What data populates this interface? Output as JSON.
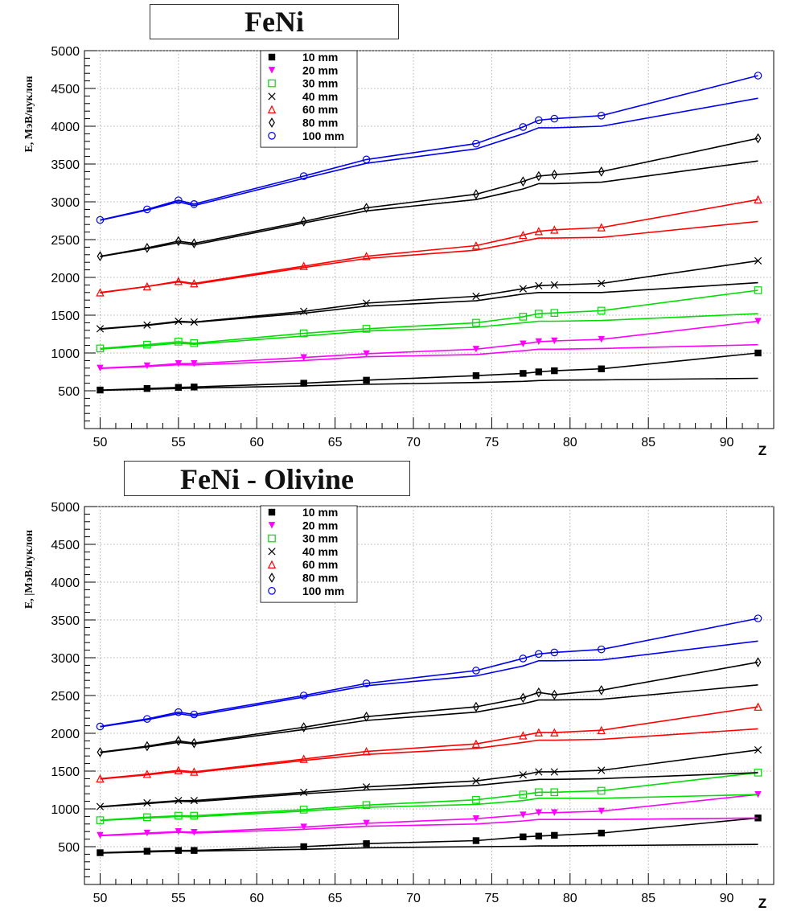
{
  "chart_data": [
    {
      "type": "line",
      "title": "FeNi",
      "ylabel": "E,  МэВ/нуклон",
      "xlabel": "Z",
      "xlim": [
        49,
        93
      ],
      "ylim": [
        0,
        5000
      ],
      "xticks": [
        50,
        55,
        60,
        65,
        70,
        75,
        80,
        85,
        90
      ],
      "yticks": [
        500,
        1000,
        1500,
        2000,
        2500,
        3000,
        3500,
        4000,
        4500,
        5000
      ],
      "grid": true,
      "legend_position": "top-center",
      "x": [
        50,
        53,
        55,
        56,
        63,
        67,
        74,
        77,
        78,
        79,
        82,
        92
      ],
      "series": [
        {
          "name": "10 mm",
          "marker": "filled-square",
          "color": "#000000",
          "values": [
            510,
            530,
            545,
            550,
            600,
            640,
            700,
            730,
            750,
            765,
            790,
            1000
          ],
          "fit": [
            505,
            520,
            530,
            535,
            565,
            585,
            610,
            625,
            635,
            640,
            645,
            665
          ]
        },
        {
          "name": "20 mm",
          "marker": "filled-triangle-down",
          "color": "#ff00ff",
          "values": [
            800,
            830,
            860,
            860,
            940,
            990,
            1050,
            1120,
            1150,
            1160,
            1180,
            1420
          ],
          "fit": [
            795,
            820,
            845,
            840,
            900,
            950,
            980,
            1030,
            1050,
            1050,
            1060,
            1110
          ]
        },
        {
          "name": "30 mm",
          "marker": "open-square",
          "color": "#00dd00",
          "values": [
            1060,
            1110,
            1150,
            1130,
            1260,
            1320,
            1400,
            1480,
            1520,
            1530,
            1560,
            1830
          ],
          "fit": [
            1050,
            1095,
            1130,
            1115,
            1225,
            1290,
            1340,
            1400,
            1420,
            1420,
            1430,
            1520
          ]
        },
        {
          "name": "40 mm",
          "marker": "cross",
          "color": "#000000",
          "values": [
            1320,
            1370,
            1420,
            1410,
            1550,
            1660,
            1750,
            1850,
            1890,
            1900,
            1920,
            2220
          ],
          "fit": [
            1315,
            1365,
            1410,
            1405,
            1525,
            1620,
            1690,
            1780,
            1800,
            1800,
            1800,
            1930
          ]
        },
        {
          "name": "60 mm",
          "marker": "open-triangle-up",
          "color": "#ff0000",
          "values": [
            1800,
            1880,
            1950,
            1920,
            2150,
            2280,
            2420,
            2560,
            2610,
            2630,
            2660,
            3030
          ],
          "fit": [
            1795,
            1880,
            1940,
            1910,
            2130,
            2250,
            2360,
            2480,
            2520,
            2520,
            2530,
            2740
          ]
        },
        {
          "name": "80 mm",
          "marker": "open-diamond",
          "color": "#000000",
          "values": [
            2280,
            2390,
            2480,
            2450,
            2740,
            2920,
            3100,
            3270,
            3340,
            3360,
            3400,
            3840
          ],
          "fit": [
            2275,
            2380,
            2460,
            2430,
            2720,
            2880,
            3030,
            3170,
            3240,
            3240,
            3260,
            3540
          ]
        },
        {
          "name": "100 mm",
          "marker": "open-circle",
          "color": "#0000ee",
          "values": [
            2760,
            2900,
            3020,
            2970,
            3340,
            3560,
            3770,
            3990,
            4080,
            4100,
            4140,
            4670
          ],
          "fit": [
            2755,
            2890,
            3000,
            2950,
            3310,
            3510,
            3700,
            3900,
            3980,
            3980,
            4000,
            4370
          ]
        }
      ]
    },
    {
      "type": "line",
      "title": "FeNi - Olivine",
      "ylabel": "E, |МэВ/нуклон",
      "xlabel": "Z",
      "xlim": [
        49,
        93
      ],
      "ylim": [
        0,
        5000
      ],
      "xticks": [
        50,
        55,
        60,
        65,
        70,
        75,
        80,
        85,
        90
      ],
      "yticks": [
        500,
        1000,
        1500,
        2000,
        2500,
        3000,
        3500,
        4000,
        4500,
        5000
      ],
      "grid": true,
      "legend_position": "top-center",
      "x": [
        50,
        53,
        55,
        56,
        63,
        67,
        74,
        77,
        78,
        79,
        82,
        92
      ],
      "series": [
        {
          "name": "10 mm",
          "marker": "filled-square",
          "color": "#000000",
          "values": [
            420,
            440,
            450,
            450,
            500,
            540,
            580,
            630,
            640,
            650,
            680,
            880
          ],
          "fit": [
            415,
            430,
            440,
            440,
            465,
            485,
            500,
            505,
            510,
            510,
            515,
            530
          ]
        },
        {
          "name": "20 mm",
          "marker": "filled-triangle-down",
          "color": "#ff00ff",
          "values": [
            650,
            680,
            700,
            690,
            760,
            810,
            870,
            920,
            950,
            950,
            970,
            1190
          ],
          "fit": [
            645,
            670,
            690,
            680,
            730,
            770,
            800,
            840,
            860,
            860,
            860,
            880
          ]
        },
        {
          "name": "30 mm",
          "marker": "open-square",
          "color": "#00dd00",
          "values": [
            850,
            890,
            910,
            910,
            990,
            1050,
            1120,
            1190,
            1220,
            1220,
            1240,
            1480
          ],
          "fit": [
            845,
            880,
            900,
            895,
            970,
            1020,
            1060,
            1110,
            1140,
            1140,
            1140,
            1190
          ]
        },
        {
          "name": "40 mm",
          "marker": "cross",
          "color": "#000000",
          "values": [
            1030,
            1080,
            1110,
            1110,
            1220,
            1290,
            1370,
            1450,
            1490,
            1490,
            1510,
            1780
          ],
          "fit": [
            1025,
            1070,
            1100,
            1095,
            1200,
            1250,
            1310,
            1370,
            1390,
            1390,
            1400,
            1480
          ]
        },
        {
          "name": "60 mm",
          "marker": "open-triangle-up",
          "color": "#ff0000",
          "values": [
            1400,
            1460,
            1510,
            1490,
            1660,
            1760,
            1860,
            1970,
            2010,
            2010,
            2040,
            2350
          ],
          "fit": [
            1395,
            1450,
            1495,
            1480,
            1640,
            1720,
            1800,
            1880,
            1910,
            1910,
            1920,
            2060
          ]
        },
        {
          "name": "80 mm",
          "marker": "open-diamond",
          "color": "#000000",
          "values": [
            1750,
            1830,
            1900,
            1870,
            2080,
            2220,
            2350,
            2470,
            2540,
            2510,
            2570,
            2940
          ],
          "fit": [
            1745,
            1820,
            1880,
            1860,
            2050,
            2170,
            2280,
            2390,
            2440,
            2440,
            2450,
            2640
          ]
        },
        {
          "name": "100 mm",
          "marker": "open-circle",
          "color": "#0000ee",
          "values": [
            2090,
            2190,
            2280,
            2250,
            2500,
            2660,
            2830,
            2990,
            3050,
            3070,
            3110,
            3520
          ],
          "fit": [
            2085,
            2180,
            2260,
            2230,
            2480,
            2630,
            2760,
            2890,
            2960,
            2960,
            2970,
            3220
          ]
        }
      ]
    }
  ]
}
